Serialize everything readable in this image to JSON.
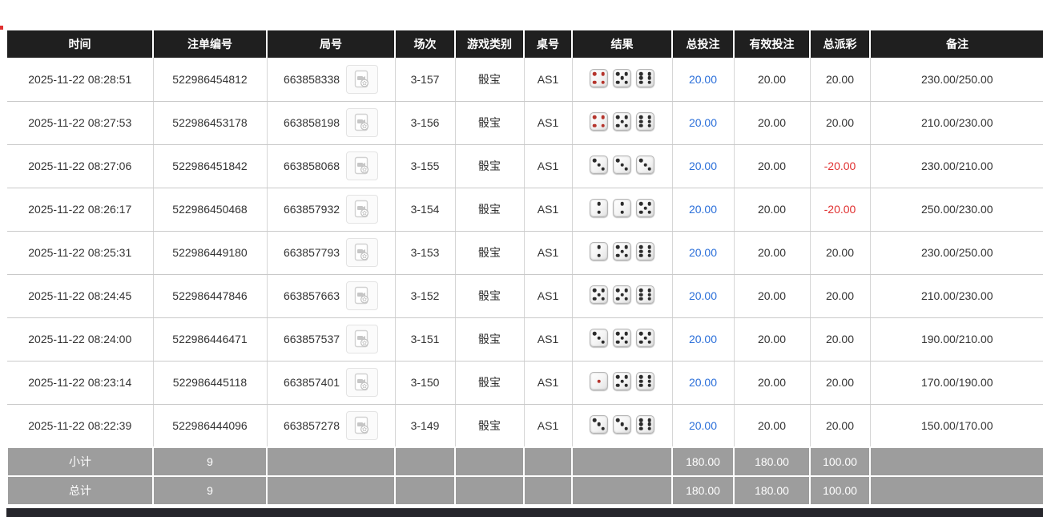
{
  "colors": {
    "header_bg": "#1f1f1f",
    "footer_bg": "#9d9d9d",
    "link_blue": "#2b6fd9",
    "negative_red": "#e03030",
    "die_red_pip": "#b5342c",
    "die_black_pip": "#2c2c2c",
    "bottom_bar": "#26262c"
  },
  "icons": {
    "round_media_icon": "video-file-icon",
    "dice_icons": "dice-face-icons"
  },
  "table": {
    "columns": [
      {
        "id": "time",
        "label": "时间"
      },
      {
        "id": "bet_id",
        "label": "注单编号"
      },
      {
        "id": "round_id",
        "label": "局号"
      },
      {
        "id": "session",
        "label": "场次"
      },
      {
        "id": "game_type",
        "label": "游戏类别"
      },
      {
        "id": "table_no",
        "label": "桌号"
      },
      {
        "id": "result",
        "label": "结果"
      },
      {
        "id": "total_bet",
        "label": "总投注"
      },
      {
        "id": "valid_bet",
        "label": "有效投注"
      },
      {
        "id": "payout",
        "label": "总派彩"
      },
      {
        "id": "remark",
        "label": "备注"
      }
    ],
    "rows": [
      {
        "time": "2025-11-22 08:28:51",
        "bet_id": "522986454812",
        "round_id": "663858338",
        "session": "3-157",
        "game_type": "骰宝",
        "table_no": "AS1",
        "dice": [
          4,
          5,
          6
        ],
        "total_bet": "20.00",
        "valid_bet": "20.00",
        "payout": "20.00",
        "remark": "230.00/250.00"
      },
      {
        "time": "2025-11-22 08:27:53",
        "bet_id": "522986453178",
        "round_id": "663858198",
        "session": "3-156",
        "game_type": "骰宝",
        "table_no": "AS1",
        "dice": [
          4,
          5,
          6
        ],
        "total_bet": "20.00",
        "valid_bet": "20.00",
        "payout": "20.00",
        "remark": "210.00/230.00"
      },
      {
        "time": "2025-11-22 08:27:06",
        "bet_id": "522986451842",
        "round_id": "663858068",
        "session": "3-155",
        "game_type": "骰宝",
        "table_no": "AS1",
        "dice": [
          3,
          3,
          3
        ],
        "total_bet": "20.00",
        "valid_bet": "20.00",
        "payout": "-20.00",
        "remark": "230.00/210.00"
      },
      {
        "time": "2025-11-22 08:26:17",
        "bet_id": "522986450468",
        "round_id": "663857932",
        "session": "3-154",
        "game_type": "骰宝",
        "table_no": "AS1",
        "dice": [
          2,
          2,
          5
        ],
        "total_bet": "20.00",
        "valid_bet": "20.00",
        "payout": "-20.00",
        "remark": "250.00/230.00"
      },
      {
        "time": "2025-11-22 08:25:31",
        "bet_id": "522986449180",
        "round_id": "663857793",
        "session": "3-153",
        "game_type": "骰宝",
        "table_no": "AS1",
        "dice": [
          2,
          5,
          6
        ],
        "total_bet": "20.00",
        "valid_bet": "20.00",
        "payout": "20.00",
        "remark": "230.00/250.00"
      },
      {
        "time": "2025-11-22 08:24:45",
        "bet_id": "522986447846",
        "round_id": "663857663",
        "session": "3-152",
        "game_type": "骰宝",
        "table_no": "AS1",
        "dice": [
          5,
          5,
          6
        ],
        "total_bet": "20.00",
        "valid_bet": "20.00",
        "payout": "20.00",
        "remark": "210.00/230.00"
      },
      {
        "time": "2025-11-22 08:24:00",
        "bet_id": "522986446471",
        "round_id": "663857537",
        "session": "3-151",
        "game_type": "骰宝",
        "table_no": "AS1",
        "dice": [
          3,
          5,
          5
        ],
        "total_bet": "20.00",
        "valid_bet": "20.00",
        "payout": "20.00",
        "remark": "190.00/210.00"
      },
      {
        "time": "2025-11-22 08:23:14",
        "bet_id": "522986445118",
        "round_id": "663857401",
        "session": "3-150",
        "game_type": "骰宝",
        "table_no": "AS1",
        "dice": [
          1,
          5,
          6
        ],
        "total_bet": "20.00",
        "valid_bet": "20.00",
        "payout": "20.00",
        "remark": "170.00/190.00"
      },
      {
        "time": "2025-11-22 08:22:39",
        "bet_id": "522986444096",
        "round_id": "663857278",
        "session": "3-149",
        "game_type": "骰宝",
        "table_no": "AS1",
        "dice": [
          3,
          3,
          6
        ],
        "total_bet": "20.00",
        "valid_bet": "20.00",
        "payout": "20.00",
        "remark": "150.00/170.00"
      }
    ],
    "footer": [
      {
        "label": "小计",
        "count": "9",
        "total_bet": "180.00",
        "valid_bet": "180.00",
        "payout": "100.00"
      },
      {
        "label": "总计",
        "count": "9",
        "total_bet": "180.00",
        "valid_bet": "180.00",
        "payout": "100.00"
      }
    ]
  }
}
